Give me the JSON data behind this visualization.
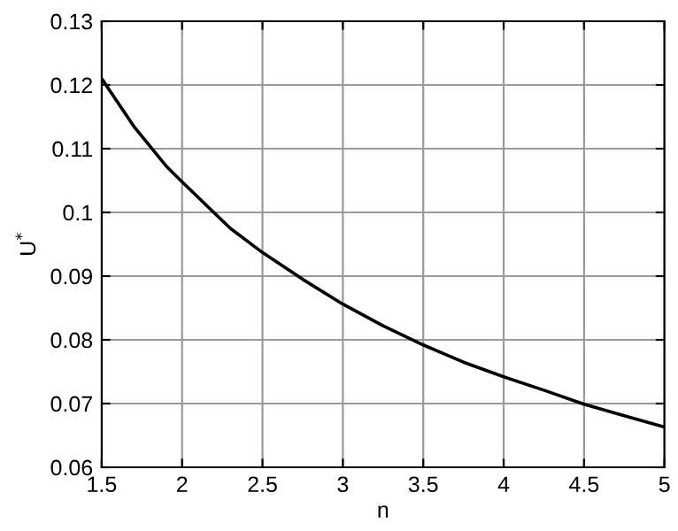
{
  "chart_data": {
    "type": "line",
    "xlabel": "n",
    "ylabel": "U$^{*}$",
    "x": [
      1.5,
      1.7,
      1.9,
      2,
      2.3,
      2.5,
      2.75,
      3,
      3.25,
      3.5,
      3.75,
      4,
      4.25,
      4.5,
      4.75,
      5
    ],
    "series": [
      {
        "color": "#000000",
        "values": [
          0.121,
          0.1135,
          0.1073,
          0.1048,
          0.0975,
          0.0937,
          0.0895,
          0.0856,
          0.0822,
          0.0792,
          0.0765,
          0.0742,
          0.0721,
          0.0699,
          0.0681,
          0.0663
        ]
      }
    ],
    "xlim": [
      1.5,
      5
    ],
    "xticks": [
      1.5,
      2,
      2.5,
      3,
      3.5,
      4,
      4.5,
      5
    ],
    "ylim": [
      0.06,
      0.13
    ],
    "yticks": [
      0.06,
      0.07,
      0.08,
      0.09,
      0.1,
      0.11,
      0.12,
      0.13
    ],
    "grid": true,
    "marker": "none",
    "line_style": "solid"
  }
}
